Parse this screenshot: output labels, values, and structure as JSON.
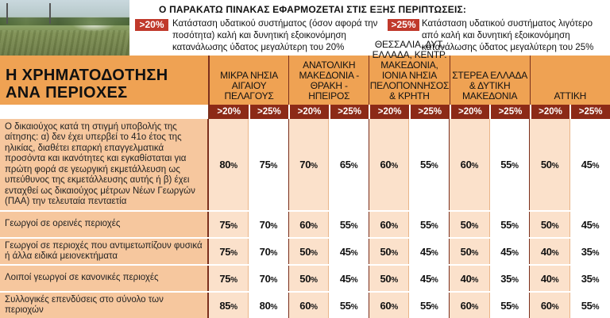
{
  "note": {
    "title": "Ο ΠΑΡΑΚΑΤΩ ΠΙΝΑΚΑΣ ΕΦΑΡΜΟΖΕΤΑΙ ΣΤΙΣ ΕΞΗΣ ΠΕΡΙΠΤΩΣΕΙΣ:",
    "badge_low": ">20%",
    "text_low": "Κατάσταση υδατικού συστήματος (όσον αφορά την ποσότητα) καλή και δυνητική εξοικονόμηση κατανάλωσης ύδατος μεγαλύτερη του 20%",
    "badge_high": ">25%",
    "text_high": "Κατάσταση υδατικού συστήματος λιγότερο από καλή και δυνητική εξοικονόμηση κατανάλωσης ύδατος μεγαλύτερη του 25%"
  },
  "title": {
    "line1": "Η ΧΡΗΜΑΤΟΔΟΤΗΣΗ",
    "line2": "ΑΝΑ ΠΕΡΙΟΧΕΣ"
  },
  "regions": [
    "ΜΙΚΡΑ ΝΗΣΙΑ ΑΙΓΑΙΟΥ ΠΕΛΑΓΟΥΣ",
    "ΑΝΑΤΟΛΙΚΗ ΜΑΚΕΔΟΝΙΑ - ΘΡΑΚΗ - ΗΠΕΙΡΟΣ",
    "ΘΕΣΣΑΛΙΑ, ΔΥΤ. ΕΛΛΑΔΑ, ΚΕΝΤΡ. ΜΑΚΕΔΟΝΙΑ, ΙΟΝΙΑ ΝΗΣΙΑ ΠΕΛΟΠΟΝΝΗΣΟΣ & ΚΡΗΤΗ",
    "ΣΤΕΡΕΑ ΕΛΛΑΔΑ & ΔΥΤΙΚΗ ΜΑΚΕΔΟΝΙΑ",
    "ΑΤΤΙΚΗ"
  ],
  "subheaders": [
    ">20%",
    ">25%"
  ],
  "rows": [
    {
      "label": "Ο δικαιούχος κατά τη στιγμή υποβολής της αίτησης: α) δεν έχει υπερβεί το 41ο έτος της ηλικίας, διαθέτει επαρκή επαγγελματικά προσόντα και ικανότητες και εγκαθίσταται για πρώτη φορά σε γεωργική εκμετάλλευση ως υπεύθυνος της εκμετάλλευσης αυτής ή β) έχει ενταχθεί ως δικαιούχος μέτρων Νέων Γεωργών (ΠΑΑ) την τελευταία πενταετία",
      "values": [
        "80",
        "75",
        "70",
        "65",
        "60",
        "55",
        "60",
        "55",
        "50",
        "45"
      ]
    },
    {
      "label": "Γεωργοί σε ορεινές περιοχές",
      "values": [
        "75",
        "70",
        "60",
        "55",
        "60",
        "55",
        "50",
        "55",
        "50",
        "45"
      ]
    },
    {
      "label": "Γεωργοί σε περιοχές που αντιμετωπίζουν φυσικά ή άλλα ειδικά μειονεκτήματα",
      "values": [
        "75",
        "70",
        "50",
        "45",
        "50",
        "45",
        "50",
        "45",
        "40",
        "35"
      ]
    },
    {
      "label": "Λοιποί γεωργοί σε κανονικές περιοχές",
      "values": [
        "75",
        "70",
        "50",
        "45",
        "50",
        "45",
        "40",
        "35",
        "40",
        "35"
      ]
    },
    {
      "label": "Συλλογικές επενδύσεις στο σύνολο των περιοχών",
      "values": [
        "85",
        "80",
        "60",
        "55",
        "60",
        "55",
        "60",
        "55",
        "60",
        "55"
      ]
    }
  ],
  "unit": "%"
}
